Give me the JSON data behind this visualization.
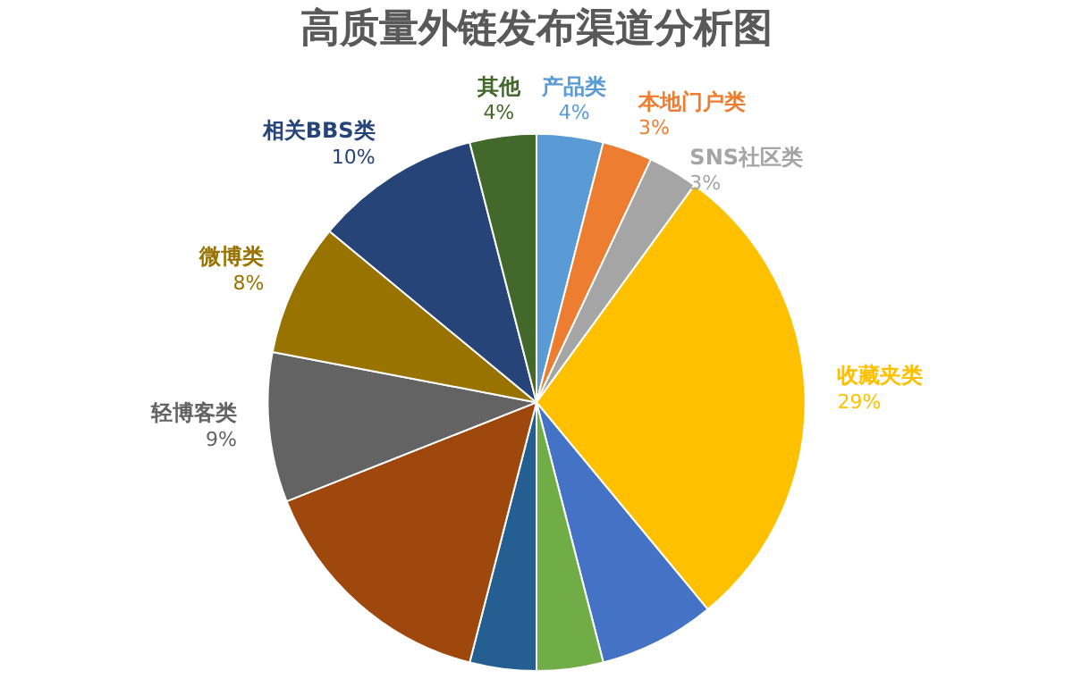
{
  "chart_data": {
    "type": "pie",
    "title": "高质量外链发布渠道分析图",
    "categories": [
      "产品类",
      "本地门户类",
      "SNS社区类",
      "收藏夹类",
      null,
      null,
      null,
      null,
      "轻博客类",
      "微博类",
      "相关BBS类",
      "其他"
    ],
    "values": [
      4,
      3,
      3,
      29,
      7,
      4,
      4,
      15,
      9,
      8,
      10,
      4
    ],
    "colors": [
      "#5b9bd5",
      "#ed7d31",
      "#a5a5a5",
      "#ffc000",
      "#4472c4",
      "#70ad47",
      "#255e91",
      "#9e480e",
      "#636363",
      "#997300",
      "#264478",
      "#43682b"
    ],
    "value_labels": [
      "4%",
      "3%",
      "3%",
      "29%",
      null,
      null,
      null,
      null,
      "9%",
      "8%",
      "10%",
      "4%"
    ]
  }
}
